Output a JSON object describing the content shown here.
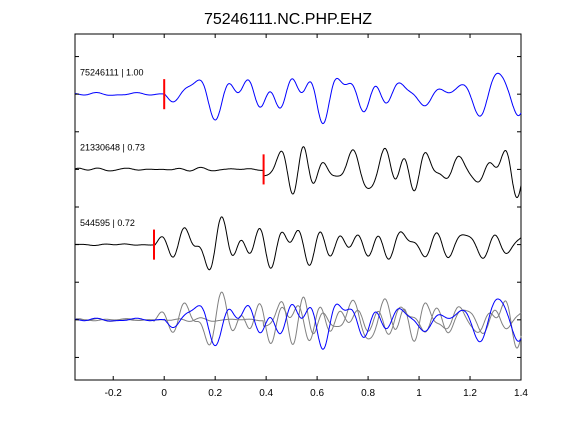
{
  "chart_data": {
    "type": "line",
    "title": "75246111.NC.PHP.EHZ",
    "xlabel": "",
    "ylabel": "",
    "xlim": [
      -0.35,
      1.4
    ],
    "xticks": [
      -0.2,
      0,
      0.2,
      0.4,
      0.6,
      0.8,
      1,
      1.2,
      1.4
    ],
    "xtick_labels": [
      "-0.2",
      "0",
      "0.2",
      "0.4",
      "0.6",
      "0.8",
      "1",
      "1.2",
      "1.4"
    ],
    "ylim": [
      -3.8,
      0.8
    ],
    "grid": false,
    "colors": {
      "reference": "#0000ff",
      "match": "#000000",
      "overlay_match": "#808080",
      "pick": "#ff0000"
    },
    "traces": [
      {
        "label": "75246111 | 1.00",
        "name": "75246111",
        "score": 1.0,
        "offset": 0,
        "color": "#0000ff",
        "pick_time": 0.0,
        "seed": 11
      },
      {
        "label": "21330648 | 0.73",
        "name": "21330648",
        "score": 0.73,
        "offset": -1,
        "color": "#000000",
        "pick_time": 0.39,
        "seed": 23
      },
      {
        "label": "544595 | 0.72",
        "name": "544595",
        "score": 0.72,
        "offset": -2,
        "color": "#000000",
        "pick_time": -0.04,
        "seed": 37
      }
    ],
    "overlay": {
      "offset": -3,
      "series": [
        "75246111",
        "21330648",
        "544595"
      ]
    }
  }
}
